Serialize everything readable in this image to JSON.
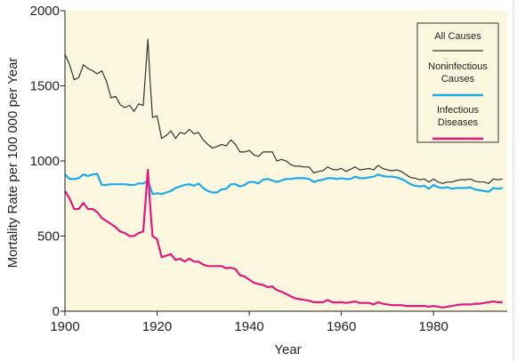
{
  "chart_data": {
    "type": "line",
    "title": "",
    "xlabel": "Year",
    "ylabel": "Mortality Rate per 100 000 per Year",
    "xlim": [
      1900,
      1996
    ],
    "ylim": [
      0,
      2000
    ],
    "x_ticks": [
      1900,
      1920,
      1940,
      1960,
      1980
    ],
    "y_ticks": [
      0,
      500,
      1000,
      1500,
      2000
    ],
    "grid": false,
    "legend_position": "top-right",
    "colors": {
      "background": "#fbf7df",
      "all_causes": "#333333",
      "noninfectious": "#1ea9e8",
      "infectious": "#de1a7e"
    },
    "series": [
      {
        "name": "All Causes",
        "color_key": "all_causes",
        "points": [
          [
            1900,
            1710
          ],
          [
            1901,
            1640
          ],
          [
            1902,
            1540
          ],
          [
            1903,
            1555
          ],
          [
            1904,
            1640
          ],
          [
            1905,
            1615
          ],
          [
            1906,
            1600
          ],
          [
            1907,
            1580
          ],
          [
            1908,
            1600
          ],
          [
            1909,
            1530
          ],
          [
            1910,
            1420
          ],
          [
            1911,
            1430
          ],
          [
            1912,
            1375
          ],
          [
            1913,
            1355
          ],
          [
            1914,
            1370
          ],
          [
            1915,
            1330
          ],
          [
            1916,
            1380
          ],
          [
            1917,
            1370
          ],
          [
            1918,
            1810
          ],
          [
            1918.5,
            1520
          ],
          [
            1919,
            1290
          ],
          [
            1920,
            1300
          ],
          [
            1921,
            1150
          ],
          [
            1922,
            1170
          ],
          [
            1923,
            1200
          ],
          [
            1924,
            1150
          ],
          [
            1925,
            1190
          ],
          [
            1926,
            1180
          ],
          [
            1927,
            1210
          ],
          [
            1928,
            1180
          ],
          [
            1929,
            1190
          ],
          [
            1930,
            1140
          ],
          [
            1931,
            1110
          ],
          [
            1932,
            1085
          ],
          [
            1933,
            1095
          ],
          [
            1934,
            1110
          ],
          [
            1935,
            1100
          ],
          [
            1936,
            1140
          ],
          [
            1937,
            1110
          ],
          [
            1938,
            1060
          ],
          [
            1939,
            1060
          ],
          [
            1940,
            1070
          ],
          [
            1941,
            1040
          ],
          [
            1942,
            1030
          ],
          [
            1943,
            1060
          ],
          [
            1944,
            1060
          ],
          [
            1945,
            1060
          ],
          [
            1946,
            1000
          ],
          [
            1947,
            1010
          ],
          [
            1948,
            1000
          ],
          [
            1949,
            975
          ],
          [
            1950,
            965
          ],
          [
            1951,
            965
          ],
          [
            1952,
            960
          ],
          [
            1953,
            960
          ],
          [
            1954,
            920
          ],
          [
            1955,
            930
          ],
          [
            1956,
            935
          ],
          [
            1957,
            960
          ],
          [
            1958,
            945
          ],
          [
            1959,
            940
          ],
          [
            1960,
            950
          ],
          [
            1961,
            930
          ],
          [
            1962,
            945
          ],
          [
            1963,
            960
          ],
          [
            1964,
            940
          ],
          [
            1965,
            945
          ],
          [
            1966,
            950
          ],
          [
            1967,
            940
          ],
          [
            1968,
            970
          ],
          [
            1969,
            950
          ],
          [
            1970,
            940
          ],
          [
            1971,
            935
          ],
          [
            1972,
            940
          ],
          [
            1973,
            930
          ],
          [
            1974,
            910
          ],
          [
            1975,
            890
          ],
          [
            1976,
            885
          ],
          [
            1977,
            875
          ],
          [
            1978,
            880
          ],
          [
            1979,
            860
          ],
          [
            1980,
            880
          ],
          [
            1981,
            860
          ],
          [
            1982,
            850
          ],
          [
            1983,
            860
          ],
          [
            1984,
            860
          ],
          [
            1985,
            870
          ],
          [
            1986,
            875
          ],
          [
            1987,
            875
          ],
          [
            1988,
            880
          ],
          [
            1989,
            865
          ],
          [
            1990,
            860
          ],
          [
            1991,
            860
          ],
          [
            1992,
            850
          ],
          [
            1993,
            880
          ],
          [
            1994,
            875
          ],
          [
            1995,
            880
          ]
        ]
      },
      {
        "name": "Noninfectious Causes",
        "color_key": "noninfectious",
        "points": [
          [
            1900,
            910
          ],
          [
            1901,
            880
          ],
          [
            1902,
            880
          ],
          [
            1903,
            885
          ],
          [
            1904,
            910
          ],
          [
            1905,
            900
          ],
          [
            1906,
            910
          ],
          [
            1907,
            915
          ],
          [
            1908,
            840
          ],
          [
            1909,
            840
          ],
          [
            1910,
            845
          ],
          [
            1911,
            845
          ],
          [
            1912,
            845
          ],
          [
            1913,
            845
          ],
          [
            1914,
            840
          ],
          [
            1915,
            840
          ],
          [
            1916,
            850
          ],
          [
            1917,
            850
          ],
          [
            1918,
            870
          ],
          [
            1919,
            780
          ],
          [
            1920,
            785
          ],
          [
            1921,
            780
          ],
          [
            1922,
            790
          ],
          [
            1923,
            800
          ],
          [
            1924,
            820
          ],
          [
            1925,
            830
          ],
          [
            1926,
            840
          ],
          [
            1927,
            845
          ],
          [
            1928,
            835
          ],
          [
            1929,
            850
          ],
          [
            1930,
            820
          ],
          [
            1931,
            800
          ],
          [
            1932,
            790
          ],
          [
            1933,
            790
          ],
          [
            1934,
            810
          ],
          [
            1935,
            815
          ],
          [
            1936,
            845
          ],
          [
            1937,
            845
          ],
          [
            1938,
            830
          ],
          [
            1939,
            840
          ],
          [
            1940,
            860
          ],
          [
            1941,
            860
          ],
          [
            1942,
            850
          ],
          [
            1943,
            875
          ],
          [
            1944,
            880
          ],
          [
            1945,
            870
          ],
          [
            1946,
            860
          ],
          [
            1947,
            870
          ],
          [
            1948,
            880
          ],
          [
            1949,
            880
          ],
          [
            1950,
            885
          ],
          [
            1951,
            885
          ],
          [
            1952,
            885
          ],
          [
            1953,
            880
          ],
          [
            1954,
            860
          ],
          [
            1955,
            870
          ],
          [
            1956,
            875
          ],
          [
            1957,
            885
          ],
          [
            1958,
            885
          ],
          [
            1959,
            880
          ],
          [
            1960,
            885
          ],
          [
            1961,
            880
          ],
          [
            1962,
            880
          ],
          [
            1963,
            895
          ],
          [
            1964,
            885
          ],
          [
            1965,
            885
          ],
          [
            1966,
            890
          ],
          [
            1967,
            895
          ],
          [
            1968,
            910
          ],
          [
            1969,
            900
          ],
          [
            1970,
            895
          ],
          [
            1971,
            895
          ],
          [
            1972,
            890
          ],
          [
            1973,
            880
          ],
          [
            1974,
            865
          ],
          [
            1975,
            845
          ],
          [
            1976,
            835
          ],
          [
            1977,
            830
          ],
          [
            1978,
            835
          ],
          [
            1979,
            815
          ],
          [
            1980,
            840
          ],
          [
            1981,
            825
          ],
          [
            1982,
            820
          ],
          [
            1983,
            825
          ],
          [
            1984,
            815
          ],
          [
            1985,
            820
          ],
          [
            1986,
            820
          ],
          [
            1987,
            820
          ],
          [
            1988,
            825
          ],
          [
            1989,
            810
          ],
          [
            1990,
            805
          ],
          [
            1991,
            800
          ],
          [
            1992,
            795
          ],
          [
            1993,
            820
          ],
          [
            1994,
            815
          ],
          [
            1995,
            820
          ]
        ]
      },
      {
        "name": "Infectious Diseases",
        "color_key": "infectious",
        "points": [
          [
            1900,
            800
          ],
          [
            1901,
            750
          ],
          [
            1902,
            680
          ],
          [
            1903,
            680
          ],
          [
            1904,
            720
          ],
          [
            1905,
            680
          ],
          [
            1906,
            680
          ],
          [
            1907,
            660
          ],
          [
            1908,
            620
          ],
          [
            1909,
            600
          ],
          [
            1910,
            580
          ],
          [
            1911,
            560
          ],
          [
            1912,
            530
          ],
          [
            1913,
            520
          ],
          [
            1914,
            500
          ],
          [
            1915,
            500
          ],
          [
            1916,
            520
          ],
          [
            1917,
            530
          ],
          [
            1918,
            940
          ],
          [
            1918.5,
            700
          ],
          [
            1919,
            500
          ],
          [
            1920,
            480
          ],
          [
            1921,
            360
          ],
          [
            1922,
            370
          ],
          [
            1923,
            380
          ],
          [
            1924,
            340
          ],
          [
            1925,
            350
          ],
          [
            1926,
            330
          ],
          [
            1927,
            350
          ],
          [
            1928,
            330
          ],
          [
            1929,
            330
          ],
          [
            1930,
            310
          ],
          [
            1931,
            300
          ],
          [
            1932,
            300
          ],
          [
            1933,
            300
          ],
          [
            1934,
            300
          ],
          [
            1935,
            285
          ],
          [
            1936,
            290
          ],
          [
            1937,
            280
          ],
          [
            1938,
            240
          ],
          [
            1939,
            230
          ],
          [
            1940,
            210
          ],
          [
            1941,
            190
          ],
          [
            1942,
            180
          ],
          [
            1943,
            175
          ],
          [
            1944,
            160
          ],
          [
            1945,
            165
          ],
          [
            1946,
            140
          ],
          [
            1947,
            130
          ],
          [
            1948,
            115
          ],
          [
            1949,
            100
          ],
          [
            1950,
            85
          ],
          [
            1951,
            80
          ],
          [
            1952,
            75
          ],
          [
            1953,
            70
          ],
          [
            1954,
            60
          ],
          [
            1955,
            60
          ],
          [
            1956,
            60
          ],
          [
            1957,
            75
          ],
          [
            1958,
            60
          ],
          [
            1959,
            58
          ],
          [
            1960,
            60
          ],
          [
            1961,
            55
          ],
          [
            1962,
            60
          ],
          [
            1963,
            65
          ],
          [
            1964,
            55
          ],
          [
            1965,
            55
          ],
          [
            1966,
            55
          ],
          [
            1967,
            45
          ],
          [
            1968,
            60
          ],
          [
            1969,
            50
          ],
          [
            1970,
            45
          ],
          [
            1971,
            40
          ],
          [
            1972,
            40
          ],
          [
            1973,
            40
          ],
          [
            1974,
            35
          ],
          [
            1975,
            35
          ],
          [
            1976,
            35
          ],
          [
            1977,
            35
          ],
          [
            1978,
            35
          ],
          [
            1979,
            30
          ],
          [
            1980,
            35
          ],
          [
            1981,
            30
          ],
          [
            1982,
            25
          ],
          [
            1983,
            30
          ],
          [
            1984,
            35
          ],
          [
            1985,
            40
          ],
          [
            1986,
            45
          ],
          [
            1987,
            45
          ],
          [
            1988,
            45
          ],
          [
            1989,
            50
          ],
          [
            1990,
            50
          ],
          [
            1991,
            55
          ],
          [
            1992,
            60
          ],
          [
            1993,
            65
          ],
          [
            1994,
            60
          ],
          [
            1995,
            60
          ]
        ]
      }
    ],
    "legend": [
      {
        "lines": [
          "All Causes"
        ],
        "color_key": "all_causes"
      },
      {
        "lines": [
          "Noninfectious",
          "Causes"
        ],
        "color_key": "noninfectious"
      },
      {
        "lines": [
          "Infectious",
          "Diseases"
        ],
        "color_key": "infectious"
      }
    ]
  }
}
